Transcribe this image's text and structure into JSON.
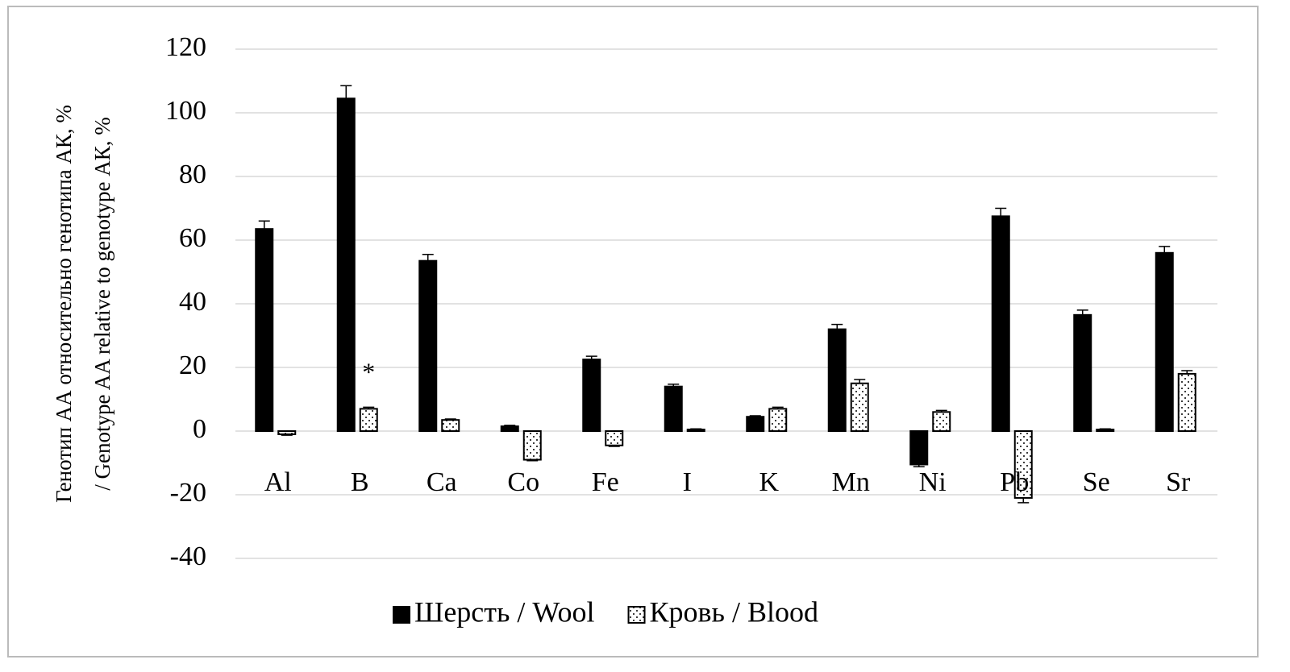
{
  "chart_data": {
    "type": "bar",
    "ylabel": [
      "Генотип АА относительно генотипа АК, %",
      "/ Genotype AA relative to genotype АК, %"
    ],
    "categories": [
      "Al",
      "B",
      "Ca",
      "Co",
      "Fe",
      "I",
      "K",
      "Mn",
      "Ni",
      "Pb",
      "Se",
      "Sr"
    ],
    "series": [
      {
        "name": "Шерсть / Wool",
        "color": "#000000",
        "pattern": "solid",
        "values": [
          63.5,
          104.5,
          53.5,
          1.5,
          22.5,
          14,
          4.5,
          32,
          -10.5,
          67.5,
          36.5,
          56
        ],
        "errors": [
          2.5,
          4,
          2,
          0.3,
          1,
          0.7,
          0.3,
          1.5,
          0.7,
          2.5,
          1.5,
          2
        ]
      },
      {
        "name": "Кровь / Blood",
        "color": "#000000",
        "pattern": "dotted",
        "values": [
          -1,
          7,
          3.5,
          -9,
          -4.5,
          0.5,
          7,
          15,
          6,
          -21,
          0.5,
          18
        ],
        "errors": [
          0.3,
          0.5,
          0.3,
          0.3,
          0.3,
          0.2,
          0.5,
          1.2,
          0.5,
          1.5,
          0.2,
          1
        ]
      }
    ],
    "annotations": [
      {
        "text": "*",
        "series": 1,
        "category": 1
      }
    ],
    "ylim": [
      -40,
      120
    ],
    "yticks": [
      -40,
      -20,
      0,
      20,
      40,
      60,
      80,
      100,
      120
    ],
    "grid": true,
    "legend": "bottom"
  }
}
